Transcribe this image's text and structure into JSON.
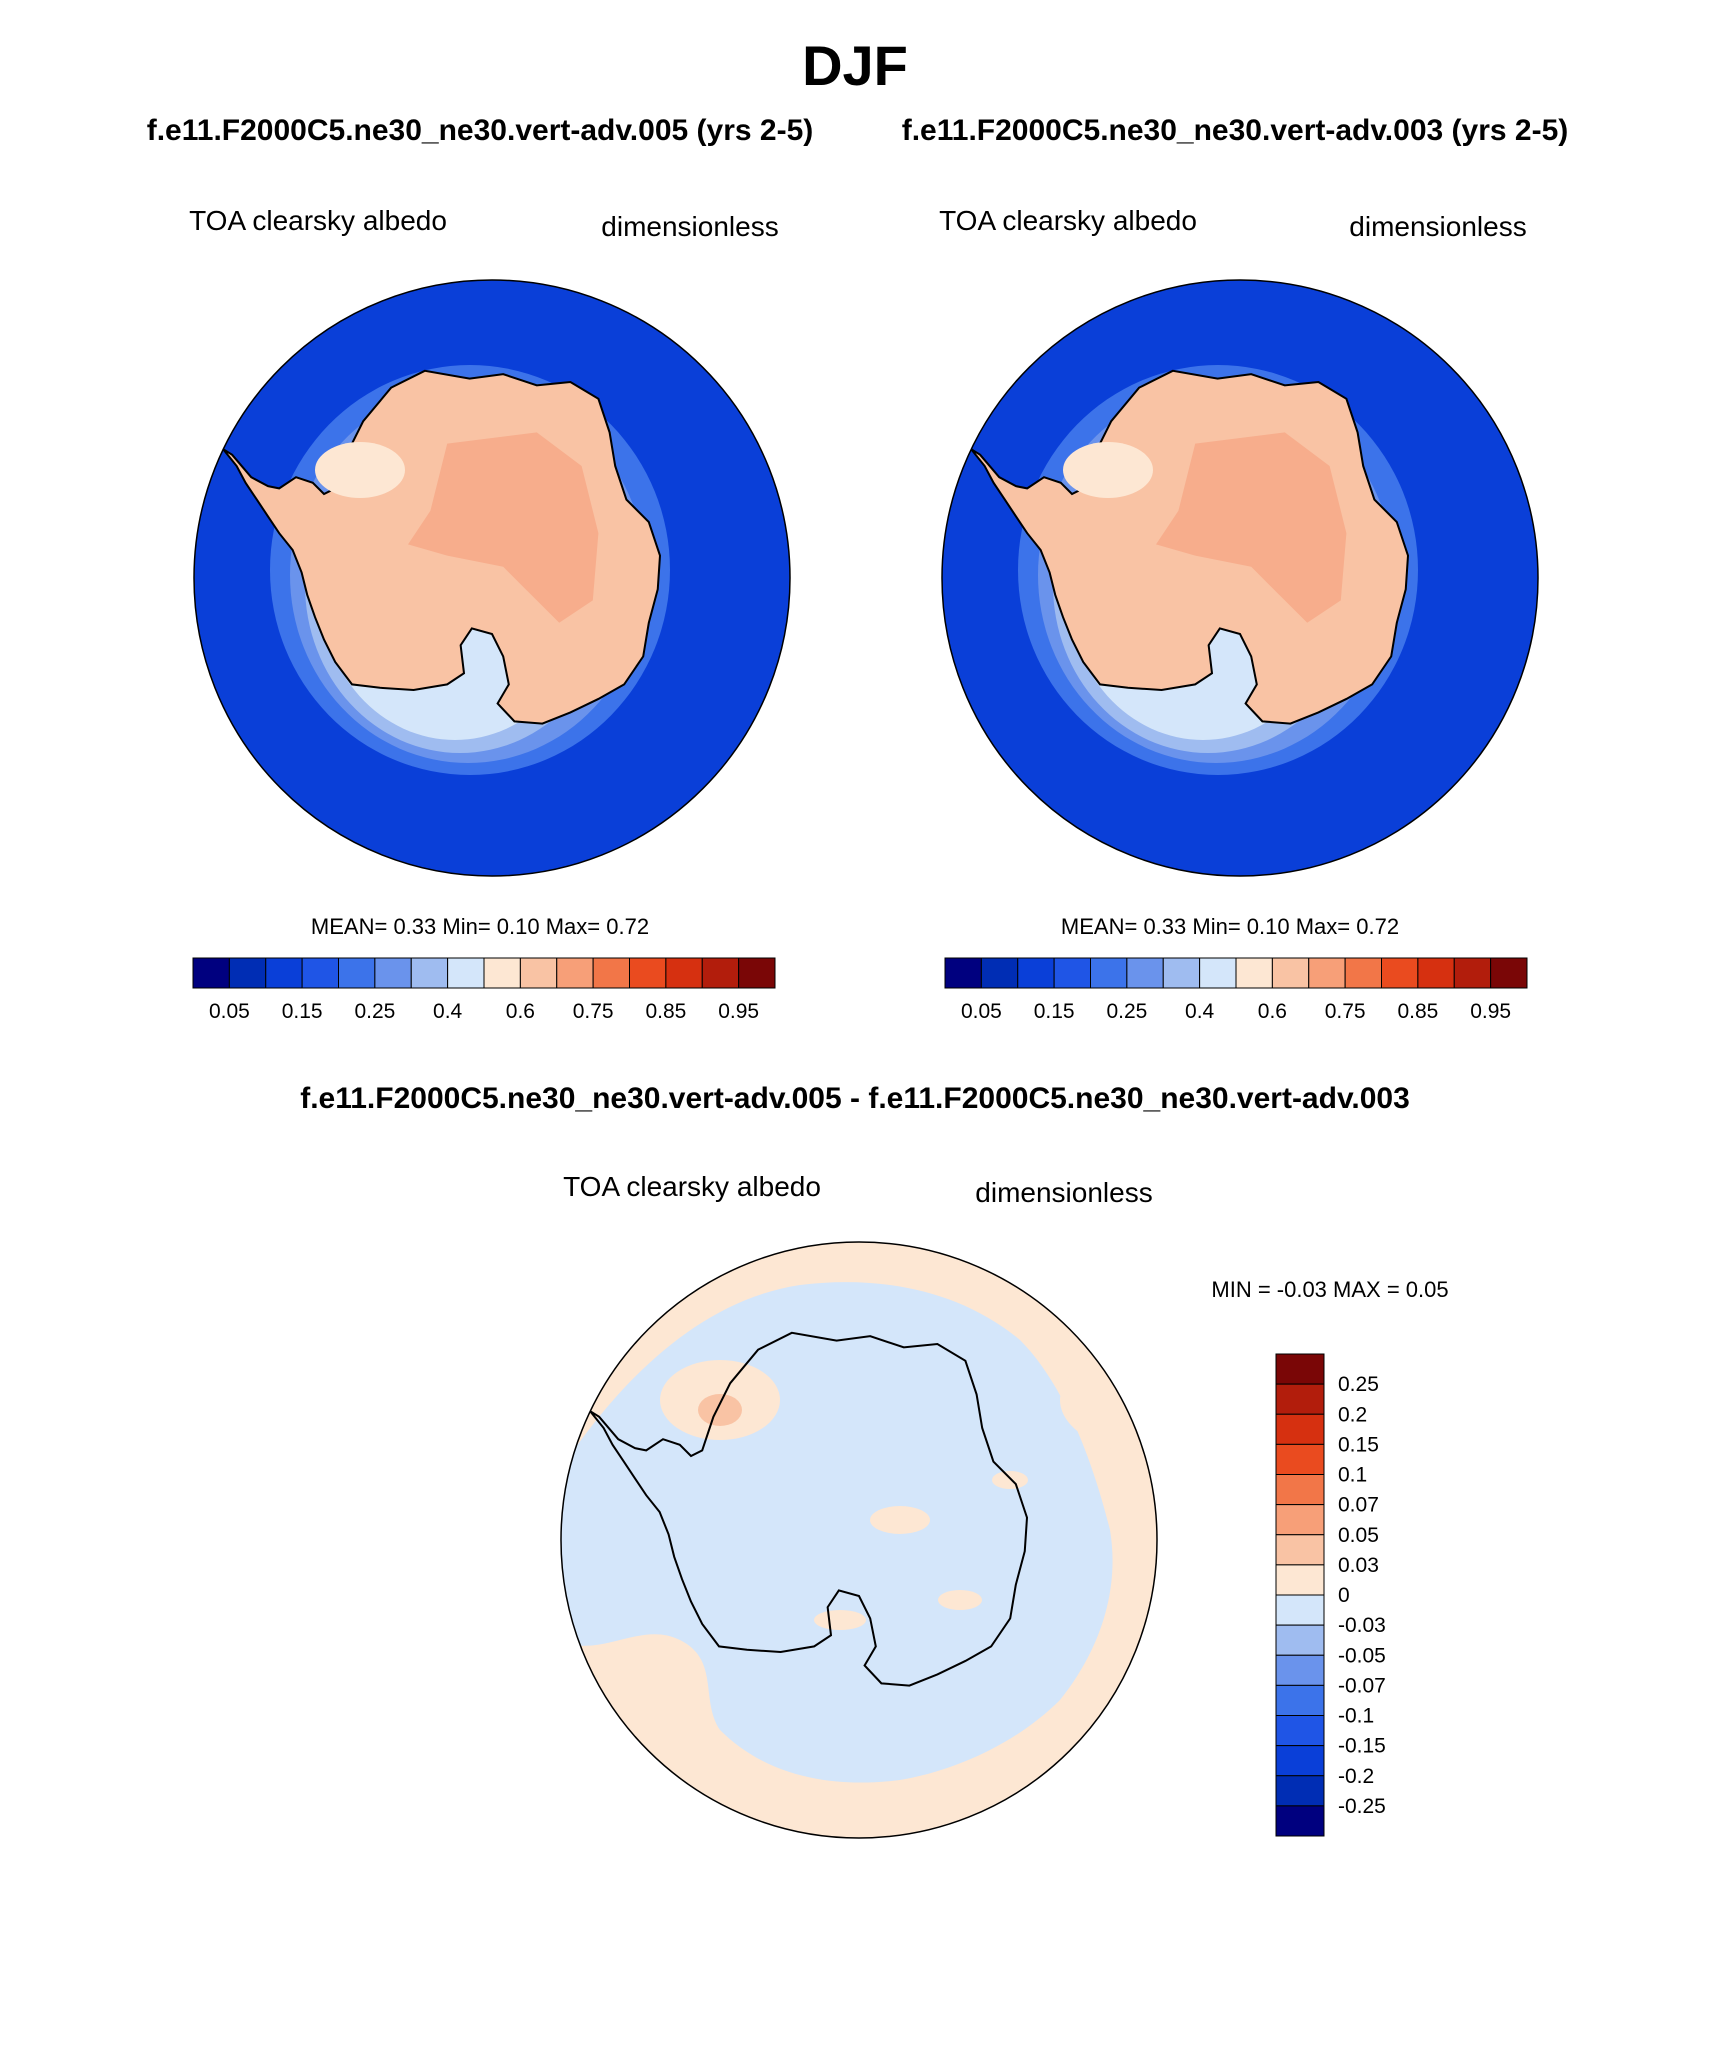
{
  "figure": {
    "season": "DJF",
    "case_a_header": "f.e11.F2000C5.ne30_ne30.vert-adv.005 (yrs 2-5)",
    "case_b_header": "f.e11.F2000C5.ne30_ne30.vert-adv.003 (yrs 2-5)",
    "diff_header": "f.e11.F2000C5.ne30_ne30.vert-adv.005 - f.e11.F2000C5.ne30_ne30.vert-adv.003"
  },
  "panels": [
    {
      "id": "case_a",
      "variable": "TOA clearsky albedo",
      "units": "dimensionless",
      "stats": "MEAN=   0.33  Min=   0.10  Max=   0.72"
    },
    {
      "id": "case_b",
      "variable": "TOA clearsky albedo",
      "units": "dimensionless",
      "stats": "MEAN=   0.33  Min=   0.10  Max=   0.72"
    },
    {
      "id": "difference",
      "variable": "TOA clearsky albedo",
      "units": "dimensionless",
      "stats": "MIN =  -0.03 MAX =   0.05"
    }
  ],
  "abs_colorbar": {
    "colors": [
      "#00007f",
      "#002db4",
      "#0a3fd8",
      "#1f55e6",
      "#3c73ea",
      "#6a93ec",
      "#9fbcf0",
      "#d4e6fa",
      "#fde7d3",
      "#f9c3a4",
      "#f79f78",
      "#f27648",
      "#ea4b1f",
      "#d63010",
      "#b21d0c",
      "#7a0606"
    ],
    "tick_labels": [
      "0.05",
      "0.15",
      "0.25",
      "0.4",
      "0.6",
      "0.75",
      "0.85",
      "0.95"
    ]
  },
  "diff_colorbar": {
    "colors_top_to_bottom": [
      "#7a0606",
      "#b21d0c",
      "#d63010",
      "#ea4b1f",
      "#f27648",
      "#f79f78",
      "#f9c3a4",
      "#fde7d3",
      "#d4e6fa",
      "#9fbcf0",
      "#6a93ec",
      "#3c73ea",
      "#1f55e6",
      "#0a3fd8",
      "#002db4",
      "#00007f"
    ],
    "tick_labels": [
      "0.25",
      "0.2",
      "0.15",
      "0.1",
      "0.07",
      "0.05",
      "0.03",
      "0",
      "-0.03",
      "-0.05",
      "-0.07",
      "-0.1",
      "-0.15",
      "-0.2",
      "-0.25"
    ]
  }
}
